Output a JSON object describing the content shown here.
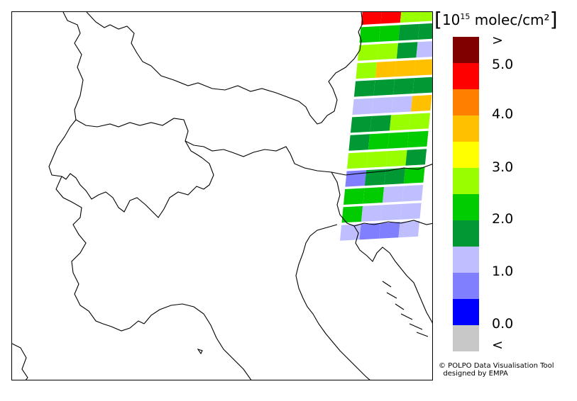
{
  "legend": {
    "unit_prefix": "[",
    "unit_base": "10",
    "unit_exponent": "15",
    "unit_rest": " molec/cm²",
    "unit_suffix": "]",
    "colors": [
      "#800000",
      "#ff0000",
      "#ff8000",
      "#ffc000",
      "#ffff00",
      "#99ff00",
      "#00cc00",
      "#009933",
      "#bfbfff",
      "#8080ff",
      "#0000ff",
      "#c8c8c8"
    ],
    "labels": [
      ">",
      "5.0",
      "4.0",
      "3.0",
      "2.0",
      "1.0",
      "0.0",
      "<"
    ]
  },
  "credit": {
    "line1": "© POLPO Data Visualisation Tool",
    "line2": "  designed by EMPA"
  },
  "swath_rows": [
    [
      "red",
      "red",
      "lightgreen",
      "lightgreen"
    ],
    [
      "green",
      "green",
      "darkgreen",
      "darkgreen"
    ],
    [
      "lightgreen",
      "lightgreen",
      "darkgreen",
      "lavender"
    ],
    [
      "lightgreen",
      "orange",
      "orange",
      "orange"
    ],
    [
      "darkgreen",
      "darkgreen",
      "darkgreen",
      "darkgreen"
    ],
    [
      "lavender",
      "lavender",
      "lavender",
      "orange"
    ],
    [
      "darkgreen",
      "darkgreen",
      "lightgreen",
      "lightgreen"
    ],
    [
      "darkgreen",
      "green",
      "green",
      "green"
    ],
    [
      "lightgreen",
      "lightgreen",
      "lightgreen",
      "darkgreen"
    ],
    [
      "periwinkle",
      "darkgreen",
      "darkgreen",
      "green"
    ],
    [
      "green",
      "green",
      "lavender",
      "lavender"
    ],
    [
      "green",
      "lavender",
      "lavender",
      "lavender"
    ],
    [
      "lavender",
      "periwinkle",
      "periwinkle",
      "lavender"
    ]
  ]
}
